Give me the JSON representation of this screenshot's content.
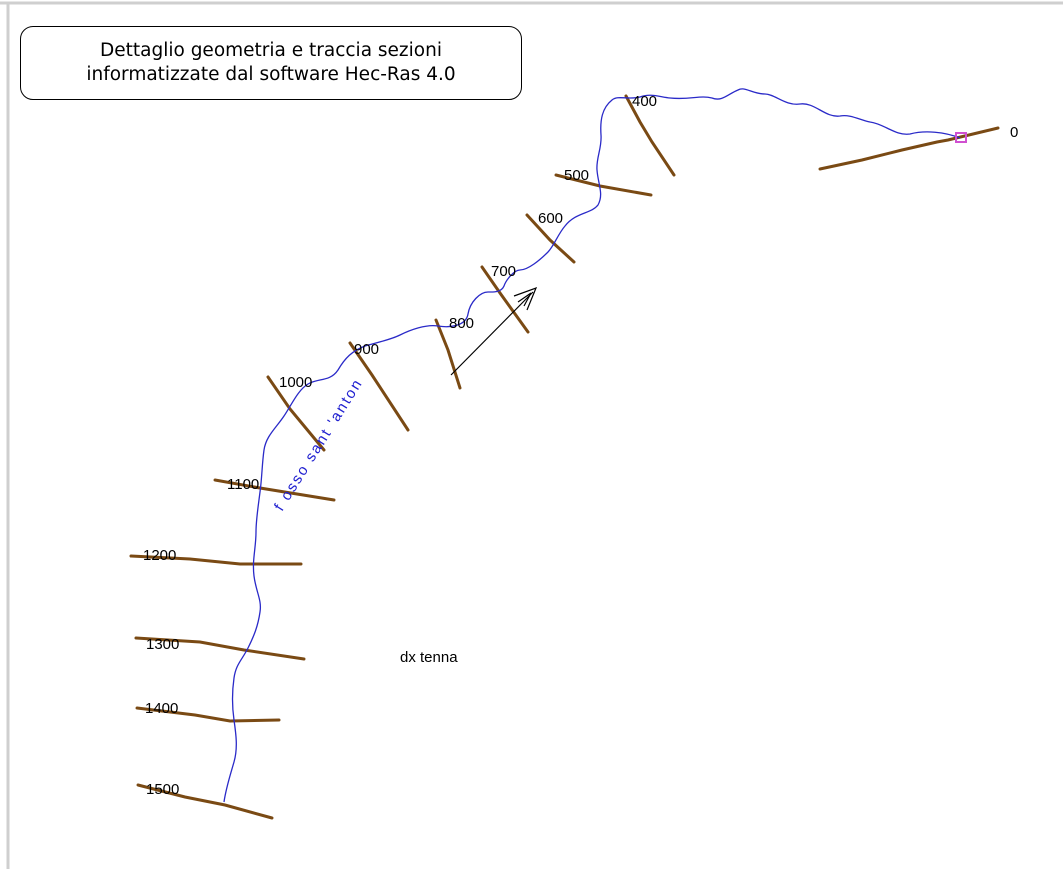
{
  "caption": {
    "line1": "Dettaglio geometria e traccia sezioni",
    "line2": "informatizzate dal software Hec-Ras 4.0"
  },
  "river_name": "fosso sant'antonio",
  "river_label_text": "f osso sant 'anton",
  "reach_name": "dx tenna",
  "cross_sections": [
    {
      "id": "s0",
      "label": "0"
    },
    {
      "id": "s400",
      "label": "400"
    },
    {
      "id": "s500",
      "label": "500"
    },
    {
      "id": "s600",
      "label": "600"
    },
    {
      "id": "s700",
      "label": "700"
    },
    {
      "id": "s800",
      "label": "800"
    },
    {
      "id": "s900",
      "label": "900"
    },
    {
      "id": "s1000",
      "label": "1000"
    },
    {
      "id": "s1100",
      "label": "1100"
    },
    {
      "id": "s1200",
      "label": "1200"
    },
    {
      "id": "s1300",
      "label": "1300"
    },
    {
      "id": "s1400",
      "label": "1400"
    },
    {
      "id": "s1500",
      "label": "1500"
    }
  ],
  "colors": {
    "river": "#2a2ac8",
    "cross_section": "#7a4a14",
    "junction_marker": "#d050d0",
    "flow_arrow": "#000000",
    "border": "#c8c8c8"
  },
  "icons": {
    "flow_arrow": "flow-direction-arrow-icon",
    "junction": "junction-marker-icon"
  }
}
